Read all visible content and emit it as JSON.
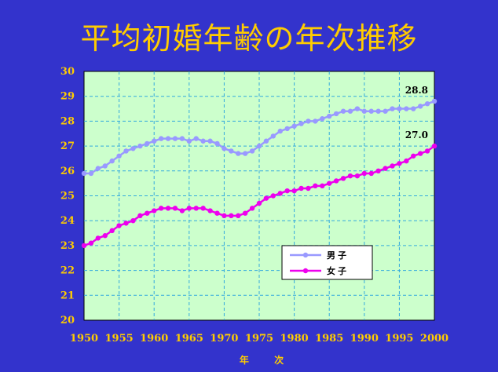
{
  "chart_data": {
    "type": "line",
    "title": "平均初婚年齢の年次推移",
    "xlabel": "年 次",
    "ylabel": "",
    "xlim": [
      1950,
      2000
    ],
    "ylim": [
      20,
      30
    ],
    "grid": true,
    "legend_position": "bottom-right",
    "x_ticks": [
      "1950",
      "1955",
      "1960",
      "1965",
      "1970",
      "1975",
      "1980",
      "1985",
      "1990",
      "1995",
      "2000"
    ],
    "y_ticks": [
      "20",
      "21",
      "22",
      "23",
      "24",
      "25",
      "26",
      "27",
      "28",
      "29",
      "30"
    ],
    "x": [
      1950,
      1951,
      1952,
      1953,
      1954,
      1955,
      1956,
      1957,
      1958,
      1959,
      1960,
      1961,
      1962,
      1963,
      1964,
      1965,
      1966,
      1967,
      1968,
      1969,
      1970,
      1971,
      1972,
      1973,
      1974,
      1975,
      1976,
      1977,
      1978,
      1979,
      1980,
      1981,
      1982,
      1983,
      1984,
      1985,
      1986,
      1987,
      1988,
      1989,
      1990,
      1991,
      1992,
      1993,
      1994,
      1995,
      1996,
      1997,
      1998,
      1999,
      2000
    ],
    "series": [
      {
        "name": "男子",
        "color": "#9999ff",
        "values": [
          25.9,
          25.9,
          26.1,
          26.2,
          26.4,
          26.6,
          26.8,
          26.9,
          27.0,
          27.1,
          27.2,
          27.3,
          27.3,
          27.3,
          27.3,
          27.2,
          27.3,
          27.2,
          27.2,
          27.1,
          26.9,
          26.8,
          26.7,
          26.7,
          26.8,
          27.0,
          27.2,
          27.4,
          27.6,
          27.7,
          27.8,
          27.9,
          28.0,
          28.0,
          28.1,
          28.2,
          28.3,
          28.4,
          28.4,
          28.5,
          28.4,
          28.4,
          28.4,
          28.4,
          28.5,
          28.5,
          28.5,
          28.5,
          28.6,
          28.7,
          28.8
        ],
        "end_label": "28.8"
      },
      {
        "name": "女子",
        "color": "#ee00ee",
        "values": [
          23.0,
          23.1,
          23.3,
          23.4,
          23.6,
          23.8,
          23.9,
          24.0,
          24.2,
          24.3,
          24.4,
          24.5,
          24.5,
          24.5,
          24.4,
          24.5,
          24.5,
          24.5,
          24.4,
          24.3,
          24.2,
          24.2,
          24.2,
          24.3,
          24.5,
          24.7,
          24.9,
          25.0,
          25.1,
          25.2,
          25.2,
          25.3,
          25.3,
          25.4,
          25.4,
          25.5,
          25.6,
          25.7,
          25.8,
          25.8,
          25.9,
          25.9,
          26.0,
          26.1,
          26.2,
          26.3,
          26.4,
          26.6,
          26.7,
          26.8,
          27.0
        ],
        "end_label": "27.0"
      }
    ]
  },
  "colors": {
    "background": "#3333cc",
    "plot_area": "#ccffcc",
    "grid": "#33aadd",
    "axis_text": "#ffcc00",
    "title": "#ffcc00"
  }
}
